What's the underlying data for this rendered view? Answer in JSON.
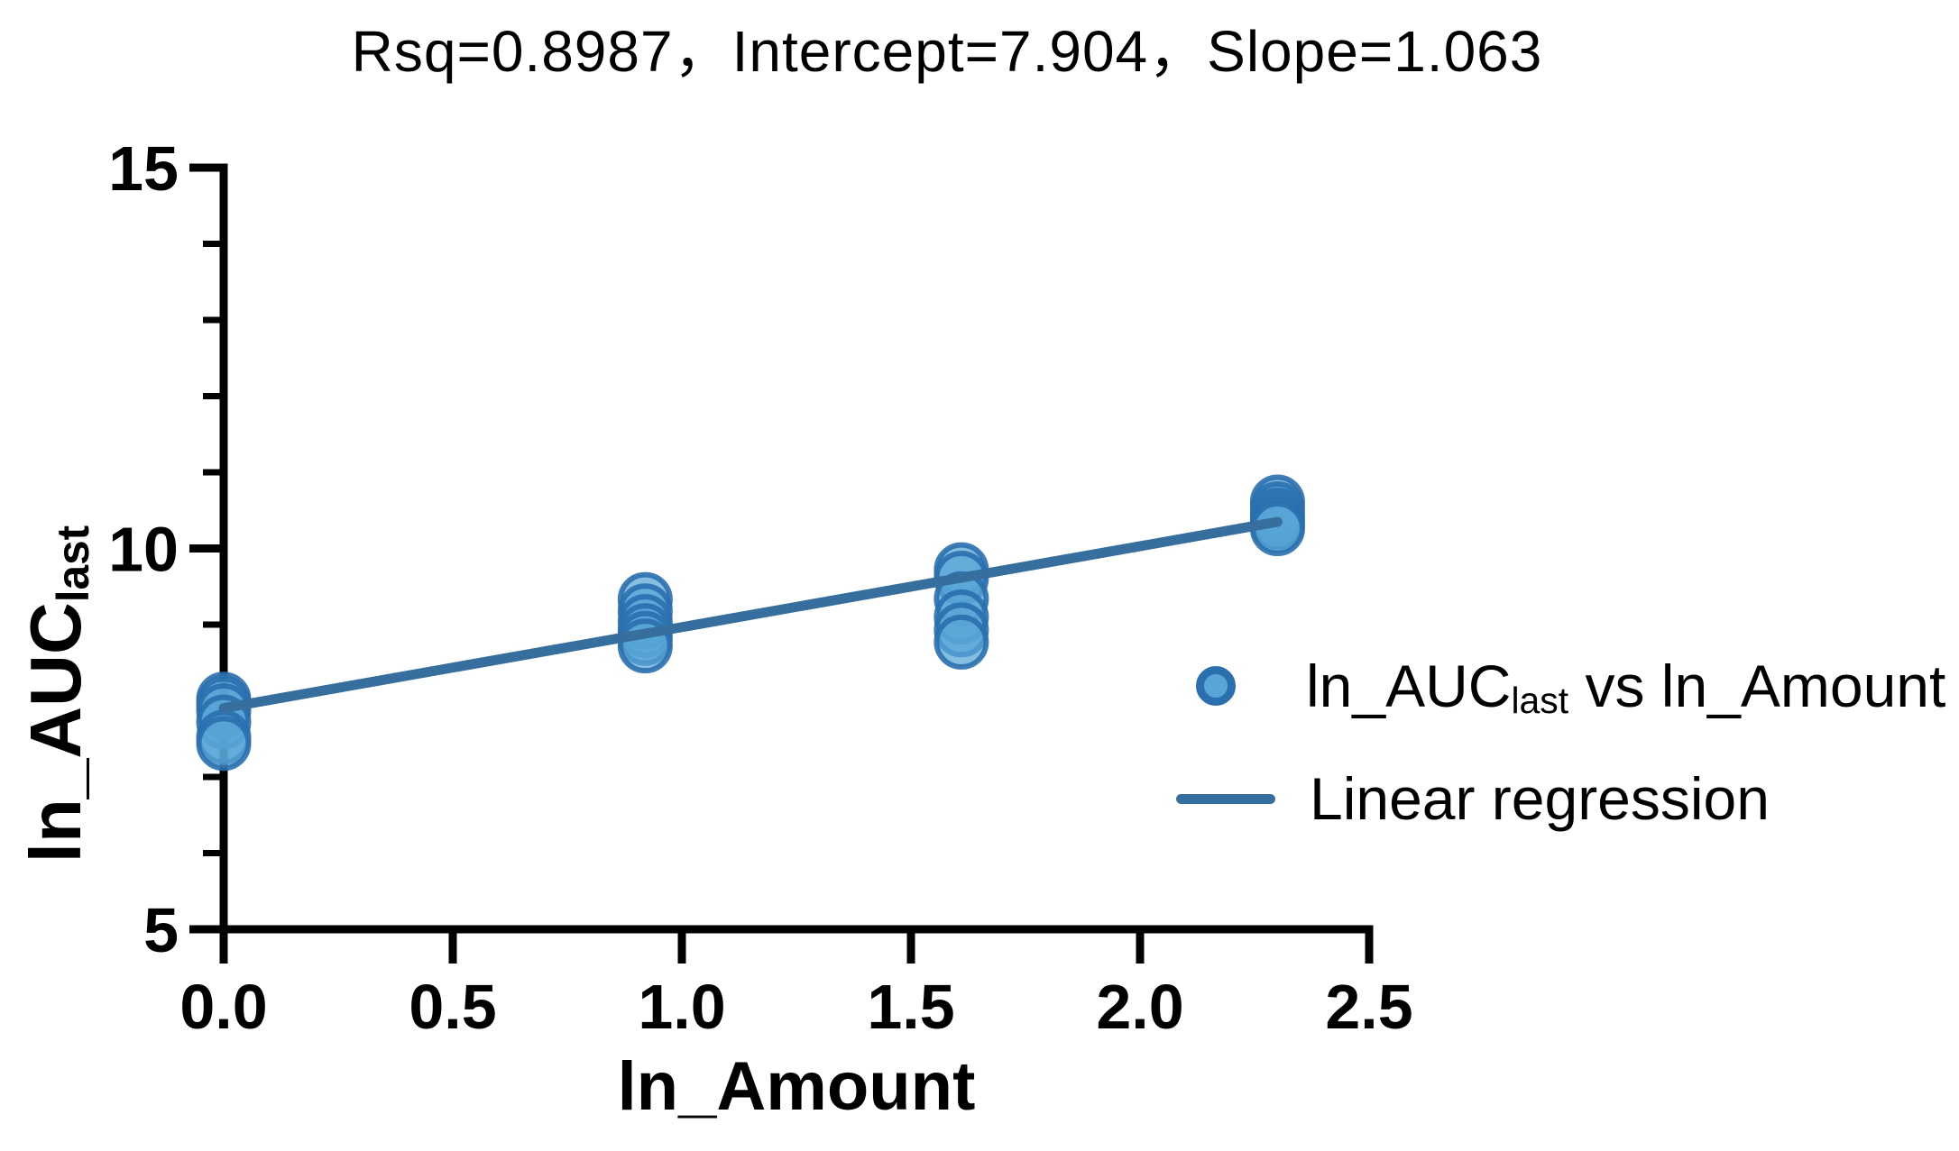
{
  "chart_data": {
    "type": "scatter",
    "title": "Rsq=0.8987，Intercept=7.904，Slope=1.063",
    "xlabel": "ln_Amount",
    "ylabel_main": "ln_AUC",
    "ylabel_sub": "last",
    "xlim": [
      0.0,
      2.5
    ],
    "ylim": [
      5,
      15
    ],
    "grid": false,
    "legend_position": "right-middle",
    "x_ticks": {
      "values": [
        0.0,
        0.5,
        1.0,
        1.5,
        2.0,
        2.5
      ],
      "labels": [
        "0.0",
        "0.5",
        "1.0",
        "1.5",
        "2.0",
        "2.5"
      ]
    },
    "y_ticks": {
      "major_values": [
        5,
        10,
        15
      ],
      "major_labels": [
        "5",
        "10",
        "15"
      ],
      "minor_values": [
        6,
        7,
        8,
        9,
        11,
        12,
        13,
        14
      ]
    },
    "series": [
      {
        "name": "ln_AUC_last vs ln_Amount",
        "type": "scatter",
        "groups": [
          {
            "x": 0.0,
            "y_values": [
              8.02,
              7.96,
              7.87,
              7.72,
              7.52,
              7.44
            ]
          },
          {
            "x": 0.92,
            "y_values": [
              9.33,
              9.18,
              9.04,
              8.92,
              8.82,
              8.72
            ]
          },
          {
            "x": 1.61,
            "y_values": [
              9.72,
              9.61,
              9.34,
              9.1,
              8.93,
              8.77
            ]
          },
          {
            "x": 2.3,
            "y_values": [
              10.61,
              10.52,
              10.44,
              10.37,
              10.31,
              10.26
            ]
          }
        ]
      },
      {
        "name": "Linear regression",
        "type": "line",
        "slope": 1.063,
        "intercept": 7.904,
        "x_start": 0.0,
        "x_end": 2.3
      }
    ],
    "stats": {
      "rsq": 0.8987,
      "intercept": 7.904,
      "slope": 1.063
    },
    "colors": {
      "point_fill": "#58a5d7",
      "point_stroke": "#2a6fae",
      "regression_line": "#366f9e",
      "axis": "#000000",
      "text": "#000000"
    },
    "legend": {
      "items": [
        {
          "marker": "scatter-point",
          "label_main": "ln_AUC",
          "label_sub": "last",
          "label_rest": " vs ln_Amount"
        },
        {
          "marker": "line",
          "label": "Linear regression"
        }
      ]
    }
  }
}
